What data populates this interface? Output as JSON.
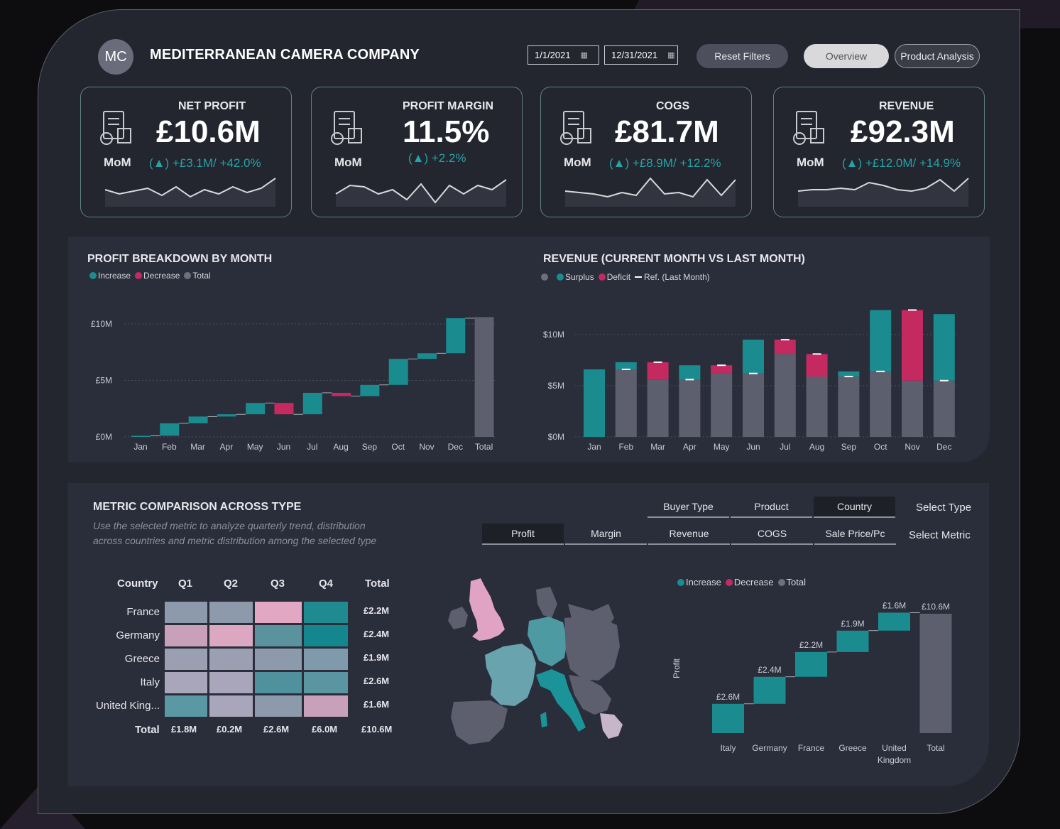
{
  "header": {
    "logo_text": "MC",
    "company": "MEDITERRANEAN CAMERA COMPANY",
    "date_from": "1/1/2021",
    "date_to": "12/31/2021",
    "reset_label": "Reset Filters",
    "overview_label": "Overview",
    "product_label": "Product Analysis"
  },
  "kpis": [
    {
      "title": "NET PROFIT",
      "value": "£10.6M",
      "mom": "MoM",
      "change": "+£3.1M/ +42.0%",
      "icon": "calculator-icon",
      "spark": [
        0.45,
        0.6,
        0.5,
        0.4,
        0.65,
        0.35,
        0.7,
        0.45,
        0.6,
        0.35,
        0.55,
        0.4,
        0.05
      ]
    },
    {
      "title": "PROFIT MARGIN",
      "value": "11.5%",
      "mom": "MoM",
      "change": "+2.2%",
      "icon": "growth-coins-icon",
      "spark": [
        0.6,
        0.3,
        0.35,
        0.6,
        0.45,
        0.8,
        0.25,
        0.9,
        0.3,
        0.6,
        0.3,
        0.45,
        0.1
      ]
    },
    {
      "title": "COGS",
      "value": "£81.7M",
      "mom": "MoM",
      "change": "+£8.9M/ +12.2%",
      "icon": "receipt-icon",
      "spark": [
        0.5,
        0.55,
        0.6,
        0.7,
        0.55,
        0.65,
        0.05,
        0.6,
        0.55,
        0.7,
        0.1,
        0.65,
        0.1
      ]
    },
    {
      "title": "REVENUE",
      "value": "£92.3M",
      "mom": "MoM",
      "change": "+£12.0M/ +14.9%",
      "icon": "money-bag-icon",
      "spark": [
        0.5,
        0.45,
        0.45,
        0.4,
        0.45,
        0.2,
        0.3,
        0.45,
        0.5,
        0.4,
        0.1,
        0.5,
        0.05
      ]
    }
  ],
  "colors": {
    "increase": "#1a8c90",
    "decrease": "#c42a60",
    "total": "#5d5f6e",
    "accent": "#26a3a6"
  },
  "profit_breakdown": {
    "title": "PROFIT BREAKDOWN BY MONTH",
    "legend": [
      "Increase",
      "Decrease",
      "Total"
    ],
    "chart_data": {
      "type": "waterfall",
      "categories": [
        "Jan",
        "Feb",
        "Mar",
        "Apr",
        "May",
        "Jun",
        "Jul",
        "Aug",
        "Sep",
        "Oct",
        "Nov",
        "Dec",
        "Total"
      ],
      "values": [
        0.1,
        1.1,
        0.6,
        0.2,
        1.0,
        -1.0,
        1.9,
        -0.3,
        1.0,
        2.3,
        0.5,
        3.1,
        10.6
      ],
      "yticks": [
        "£0M",
        "£5M",
        "£10M"
      ],
      "ylim": [
        0,
        11
      ]
    }
  },
  "revenue_chart": {
    "title": "REVENUE (CURRENT MONTH VS LAST MONTH)",
    "legend": [
      "",
      "Surplus",
      "Deficit",
      "Ref. (Last Month)"
    ],
    "chart_data": {
      "type": "bar",
      "categories": [
        "Jan",
        "Feb",
        "Mar",
        "Apr",
        "May",
        "Jun",
        "Jul",
        "Aug",
        "Sep",
        "Oct",
        "Nov",
        "Dec"
      ],
      "current": [
        6.6,
        7.3,
        5.6,
        7.0,
        6.2,
        9.5,
        8.1,
        5.9,
        6.4,
        12.4,
        5.5,
        12.0
      ],
      "last_month": [
        null,
        6.6,
        7.3,
        5.6,
        7.0,
        6.2,
        9.5,
        8.1,
        5.9,
        6.4,
        12.4,
        5.5
      ],
      "yticks": [
        "$0M",
        "$5M",
        "$10M"
      ],
      "ylim": [
        0,
        12.5
      ]
    }
  },
  "metric": {
    "title": "METRIC COMPARISON ACROSS TYPE",
    "subtitle1": "Use the selected metric to analyze quarterly trend, distribution",
    "subtitle2": "across countries and metric distribution among the selected type",
    "type_tabs": [
      "Buyer Type",
      "Product",
      "Country"
    ],
    "type_selected": 2,
    "select_type": "Select Type",
    "metric_tabs": [
      "Profit",
      "Margin",
      "Revenue",
      "COGS",
      "Sale Price/Pc"
    ],
    "metric_selected": 0,
    "select_metric": "Select Metric"
  },
  "heatmap": {
    "headers": [
      "Country",
      "Q1",
      "Q2",
      "Q3",
      "Q4",
      "Total"
    ],
    "rows": [
      {
        "name": "France",
        "totals": "£2.2M",
        "colors": [
          "#8d9aab",
          "#8d9aab",
          "#e2a8c3",
          "#1f8b90"
        ]
      },
      {
        "name": "Germany",
        "totals": "£2.4M",
        "colors": [
          "#c9a0ba",
          "#dba7c1",
          "#5a929e",
          "#13878d"
        ]
      },
      {
        "name": "Greece",
        "totals": "£1.9M",
        "colors": [
          "#9aa0b2",
          "#9aa0b2",
          "#8d9aab",
          "#7f9aaa"
        ]
      },
      {
        "name": "Italy",
        "totals": "£2.6M",
        "colors": [
          "#a9a5ba",
          "#a9a5ba",
          "#4f929d",
          "#5a95a1"
        ]
      },
      {
        "name": "United King...",
        "totals": "£1.6M",
        "colors": [
          "#5a99a3",
          "#a9a5ba",
          "#8d9aab",
          "#c9a0ba"
        ]
      }
    ],
    "total_label": "Total",
    "col_totals": [
      "£1.8M",
      "£0.2M",
      "£2.6M",
      "£6.0M",
      "£10.6M"
    ]
  },
  "country_waterfall": {
    "legend": [
      "Increase",
      "Decrease",
      "Total"
    ],
    "ylabel": "Profit",
    "chart_data": {
      "type": "waterfall",
      "categories": [
        "Italy",
        "Germany",
        "France",
        "Greece",
        "United Kingdom",
        "Total"
      ],
      "values": [
        2.6,
        2.4,
        2.2,
        1.9,
        1.6,
        10.6
      ],
      "data_labels": [
        "£2.6M",
        "£2.4M",
        "£2.2M",
        "£1.9M",
        "£1.6M",
        "£10.6M"
      ]
    }
  }
}
